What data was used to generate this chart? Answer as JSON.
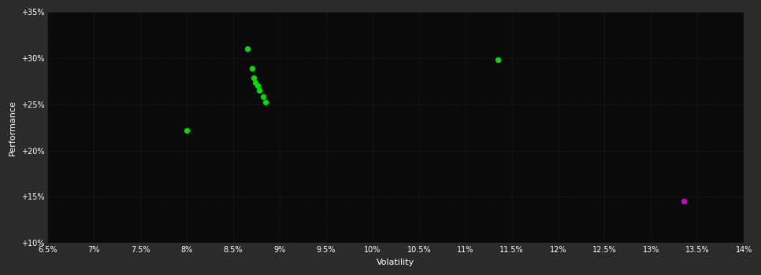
{
  "background_color": "#2b2b2b",
  "plot_bg_color": "#0a0a0a",
  "grid_color": "#ffffff",
  "grid_alpha": 0.15,
  "text_color": "#ffffff",
  "xlabel": "Volatility",
  "ylabel": "Performance",
  "xlim": [
    0.065,
    0.14
  ],
  "ylim": [
    0.1,
    0.35
  ],
  "xticks": [
    0.065,
    0.07,
    0.075,
    0.08,
    0.085,
    0.09,
    0.095,
    0.1,
    0.105,
    0.11,
    0.115,
    0.12,
    0.125,
    0.13,
    0.135,
    0.14
  ],
  "yticks": [
    0.1,
    0.15,
    0.2,
    0.25,
    0.3,
    0.35
  ],
  "green_points": [
    [
      0.08,
      0.222
    ],
    [
      0.0865,
      0.31
    ],
    [
      0.087,
      0.289
    ],
    [
      0.0872,
      0.279
    ],
    [
      0.0874,
      0.274
    ],
    [
      0.0876,
      0.27
    ],
    [
      0.0878,
      0.265
    ],
    [
      0.0882,
      0.258
    ],
    [
      0.0885,
      0.252
    ],
    [
      0.1135,
      0.298
    ]
  ],
  "magenta_points": [
    [
      0.1335,
      0.145
    ]
  ],
  "green_color": "#00dd00",
  "magenta_color": "#cc00cc",
  "marker_size": 18
}
